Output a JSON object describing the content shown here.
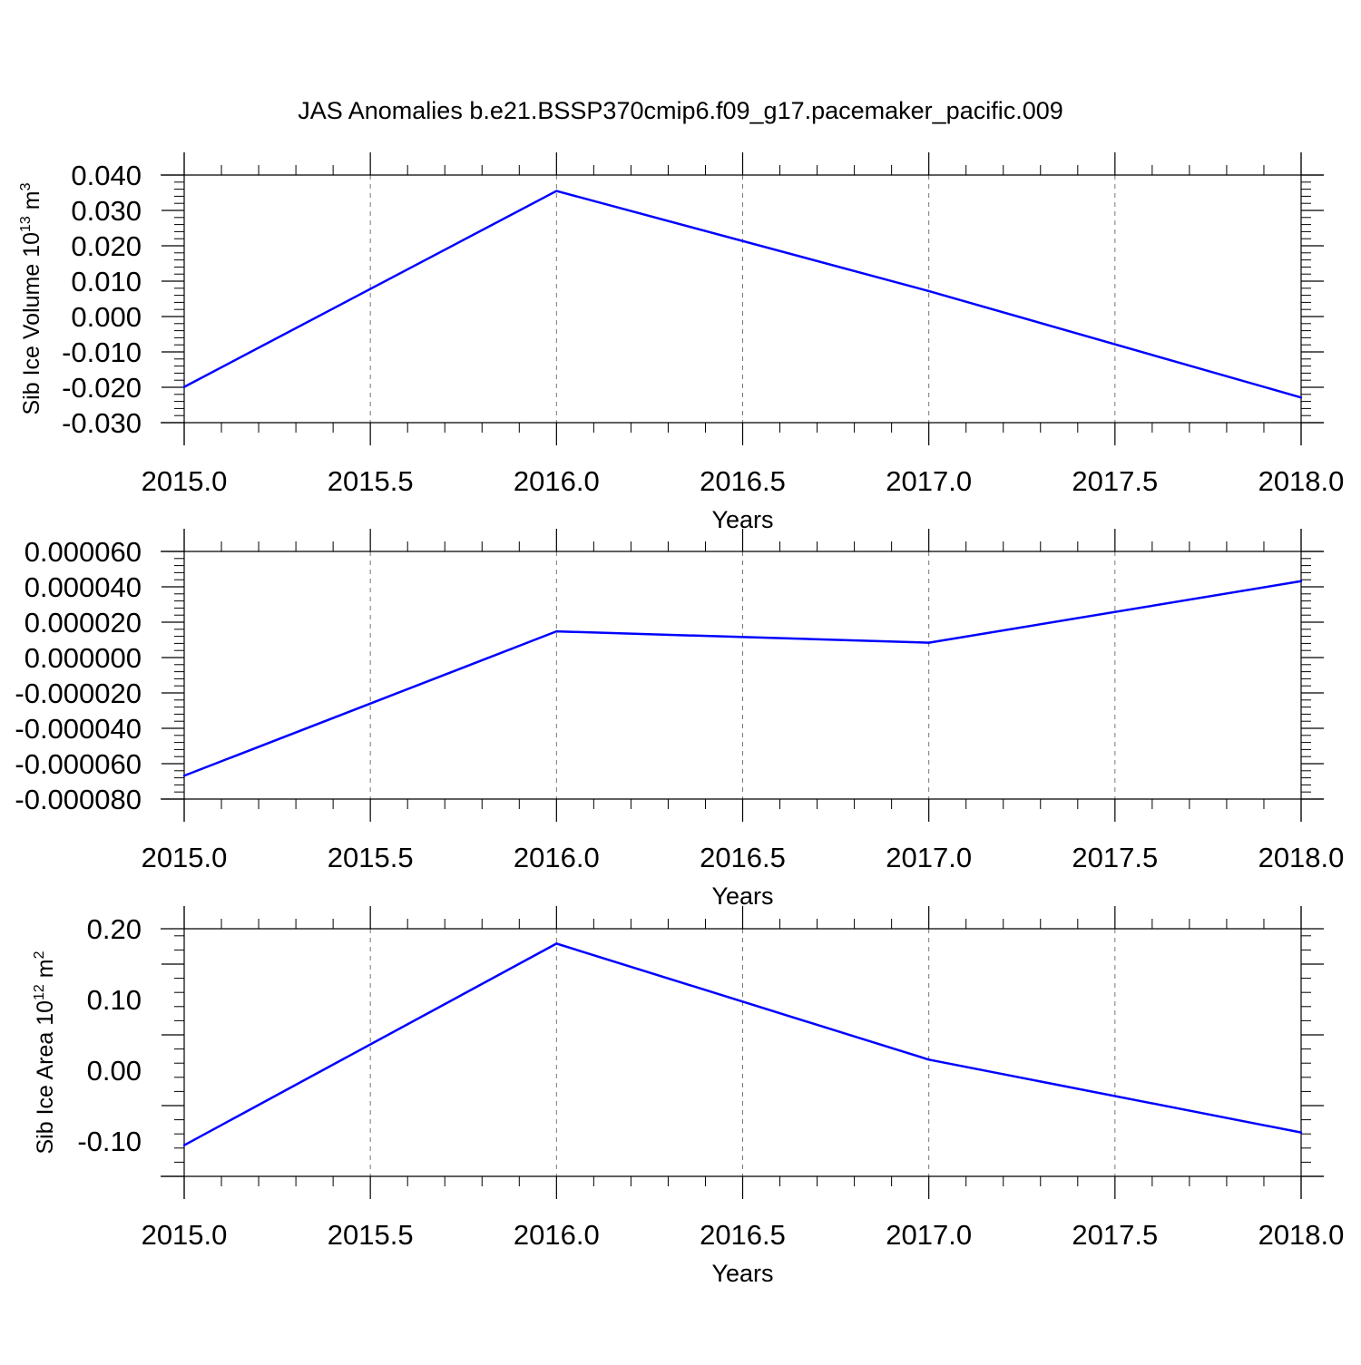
{
  "title": "JAS Anomalies b.e21.BSSP370cmip6.f09_g17.pacemaker_pacific.009",
  "colors": {
    "line": "#0000ff",
    "axis": "#000000",
    "grid": "#777777"
  },
  "chart_data": [
    {
      "type": "line",
      "ylabel": {
        "main": "Sib Ice Volume 10",
        "sup1": "13",
        "mid": " m",
        "sup2": "3"
      },
      "xlabel": "Years",
      "grid": "vertical dashed",
      "xlim": [
        2015,
        2018
      ],
      "ylim": [
        -0.03,
        0.04
      ],
      "xticks": [
        "2015.0",
        "2015.5",
        "2016.0",
        "2016.5",
        "2017.0",
        "2017.5",
        "2018.0"
      ],
      "yticks": [
        "-0.030",
        "-0.020",
        "-0.010",
        "0.000",
        "0.010",
        "0.020",
        "0.030",
        "0.040"
      ],
      "x": [
        2015,
        2016,
        2017,
        2018
      ],
      "y": [
        -0.0199,
        0.0355,
        0.0072,
        -0.0229
      ]
    },
    {
      "type": "line",
      "xlabel": "Years",
      "grid": "vertical dashed",
      "xlim": [
        2015,
        2018
      ],
      "ylim": [
        -8e-05,
        6e-05
      ],
      "xticks": [
        "2015.0",
        "2015.5",
        "2016.0",
        "2016.5",
        "2017.0",
        "2017.5",
        "2018.0"
      ],
      "yticks": [
        "-0.000080",
        "-0.000060",
        "-0.000040",
        "-0.000020",
        "0.000000",
        "0.000020",
        "0.000040",
        "0.000060"
      ],
      "x": [
        2015,
        2016,
        2017,
        2018
      ],
      "y": [
        -6.68e-05,
        1.48e-05,
        8.4e-06,
        4.32e-05
      ]
    },
    {
      "type": "line",
      "ylabel": {
        "main": "Sib Ice Area 10",
        "sup1": "12",
        "mid": " m",
        "sup2": "2"
      },
      "xlabel": "Years",
      "grid": "vertical dashed",
      "xlim": [
        2015,
        2018
      ],
      "ylim": [
        -0.15,
        0.2
      ],
      "xticks": [
        "2015.0",
        "2015.5",
        "2016.0",
        "2016.5",
        "2017.0",
        "2017.5",
        "2018.0"
      ],
      "yticks": [
        "-0.10",
        "0.00",
        "0.10",
        "0.20"
      ],
      "x": [
        2015,
        2016,
        2017,
        2018
      ],
      "y": [
        -0.106,
        0.179,
        0.015,
        -0.088
      ]
    }
  ]
}
